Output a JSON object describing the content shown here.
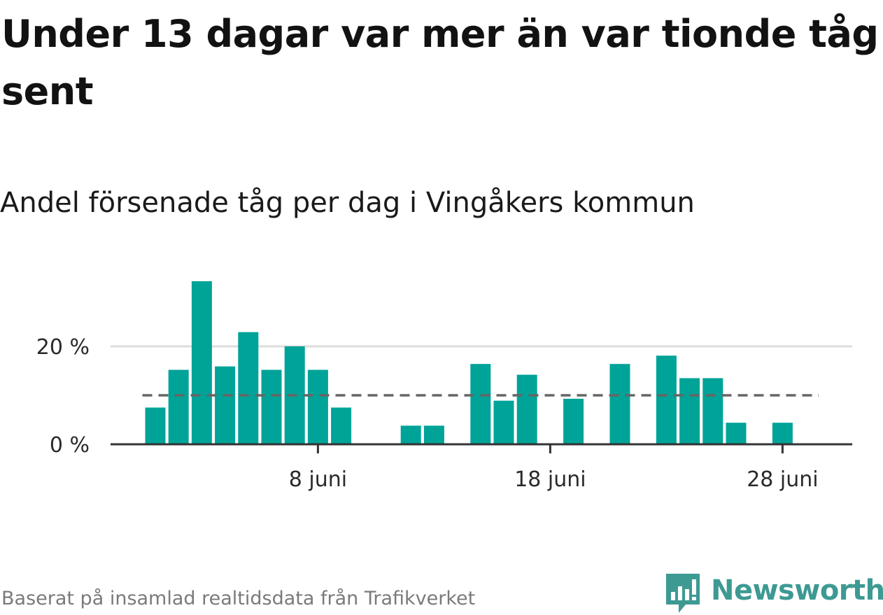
{
  "title": "Under 13 dagar var mer än var tionde tåg sent",
  "subtitle": "Andel försenade tåg per dag i Vingåkers kommun",
  "source": "Baserat på insamlad realtidsdata från Trafikverket",
  "logo": {
    "text": "Newsworthy",
    "color": "#3d9a93"
  },
  "colors": {
    "bar": "#00a398",
    "gridline": "#dddddd",
    "axis": "#333333",
    "reference_line": "#666666"
  },
  "chart_data": {
    "type": "bar",
    "x_unit": "day of June",
    "days": [
      1,
      2,
      3,
      4,
      5,
      6,
      7,
      8,
      9,
      10,
      11,
      12,
      13,
      14,
      15,
      16,
      17,
      18,
      19,
      20,
      21,
      22,
      23,
      24,
      25,
      26,
      27,
      28,
      29
    ],
    "values": [
      7.5,
      15.2,
      33.3,
      15.9,
      22.9,
      15.2,
      20.0,
      15.2,
      7.5,
      0,
      0,
      3.8,
      3.8,
      0,
      16.4,
      8.9,
      14.2,
      0,
      9.3,
      0,
      16.4,
      0,
      18.1,
      13.5,
      13.5,
      4.4,
      0,
      4.4,
      0
    ],
    "reference_line": 10,
    "reference_line_style": "dashed",
    "x_ticks": [
      {
        "day": 8,
        "label": "8 juni"
      },
      {
        "day": 18,
        "label": "18 juni"
      },
      {
        "day": 28,
        "label": "28 juni"
      }
    ],
    "y_ticks": [
      {
        "value": 0,
        "label": "0 %"
      },
      {
        "value": 20,
        "label": "20 %"
      }
    ],
    "ylim": [
      0,
      35
    ],
    "grid": "horizontal"
  }
}
